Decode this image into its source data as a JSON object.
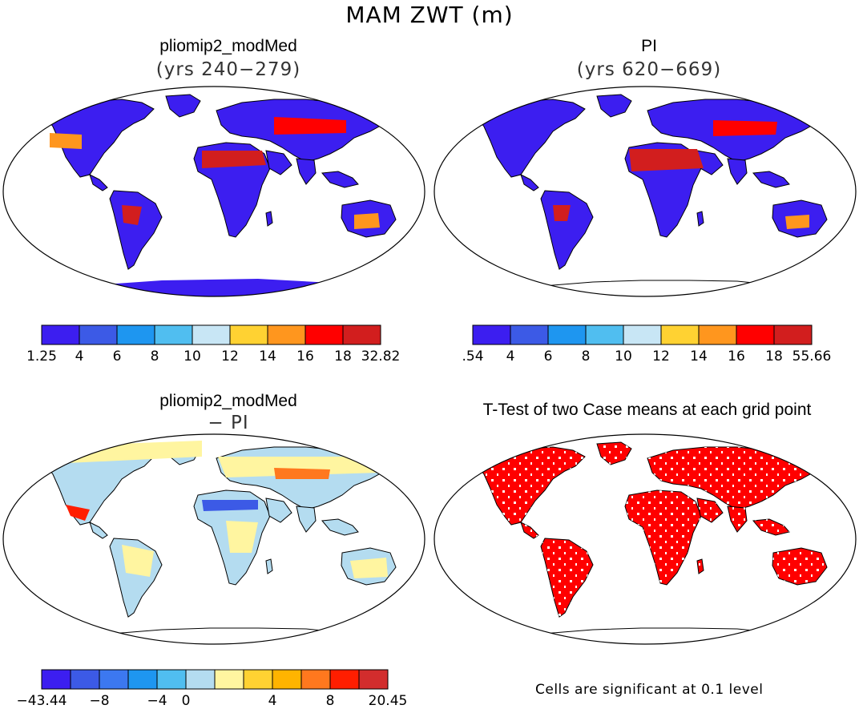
{
  "figure_title": "MAM ZWT (m)",
  "colors": {
    "zwt": [
      "#3c1ef0",
      "#3c5ae6",
      "#1e96f0",
      "#50bef0",
      "#c8e6f5",
      "#ffd232",
      "#ff961e",
      "#ff0000",
      "#d21e1e"
    ],
    "diff": [
      "#3c1ef0",
      "#3c5ae6",
      "#3c78f0",
      "#1e96f0",
      "#50bef0",
      "#b4dcf0",
      "#fff5a0",
      "#ffd232",
      "#ffb400",
      "#ff781e",
      "#ff1e00",
      "#d22d2d"
    ],
    "sig": "#ff0000",
    "land_outline": "#000000"
  },
  "panels": [
    {
      "id": "modmed",
      "title": "pliomip2_modMed",
      "subtitle": "(yrs 240−279)",
      "colorbar_labels": [
        "1.25",
        "4",
        "6",
        "8",
        "10",
        "12",
        "14",
        "16",
        "18",
        "32.82"
      ]
    },
    {
      "id": "pi",
      "title": "PI",
      "subtitle": "(yrs 620−669)",
      "colorbar_labels": [
        ".54",
        "4",
        "6",
        "8",
        "10",
        "12",
        "14",
        "16",
        "18",
        "55.66"
      ]
    },
    {
      "id": "diff",
      "title": "pliomip2_modMed",
      "subtitle": "− PI",
      "colorbar_labels": [
        "−43.44",
        "−8",
        "−4",
        "0",
        "4",
        "8",
        "20.45"
      ]
    },
    {
      "id": "ttest",
      "title": "T-Test of two Case means at each grid point",
      "subtitle": "",
      "note": "Cells are significant at 0.1 level"
    }
  ]
}
